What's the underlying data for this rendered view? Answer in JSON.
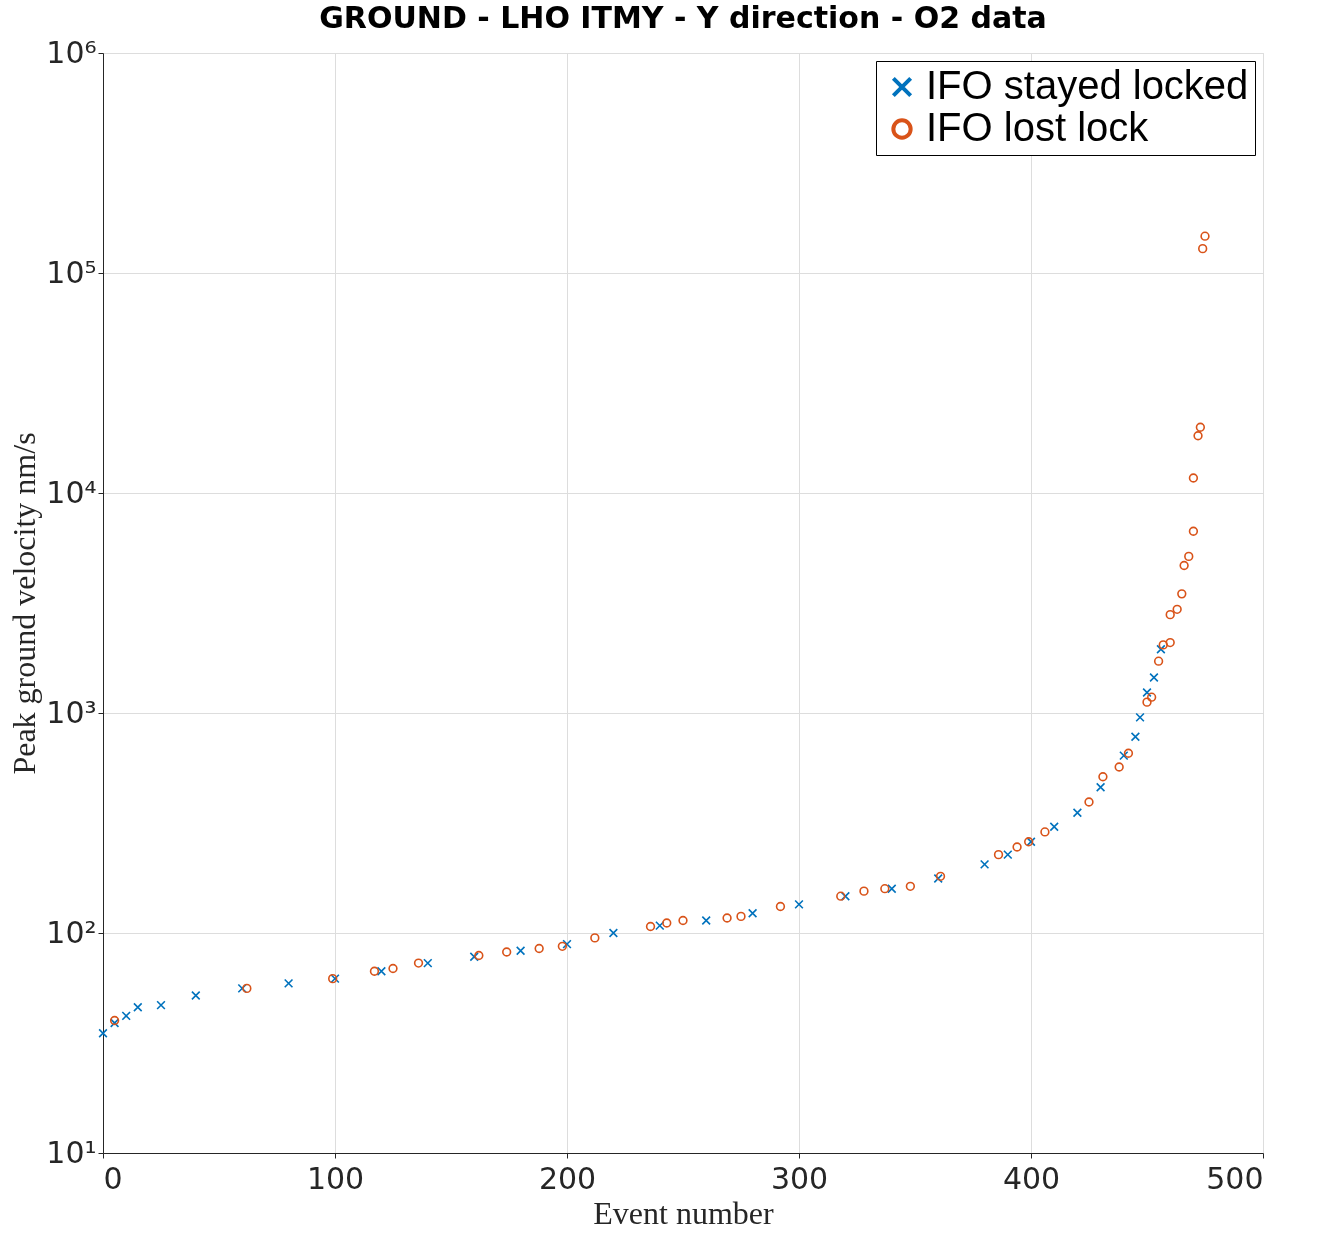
{
  "chart_data": {
    "type": "scatter",
    "title": "GROUND - LHO ITMY - Y direction - O2 data",
    "xlabel": "Event number",
    "ylabel": "Peak ground velocity nm/s",
    "xlim": [
      0,
      500
    ],
    "xticks": [
      0,
      100,
      200,
      300,
      400,
      500
    ],
    "ylim": [
      10,
      1000000
    ],
    "yticks": [
      {
        "value": 10,
        "label": "10¹"
      },
      {
        "value": 100,
        "label": "10²"
      },
      {
        "value": 1000,
        "label": "10³"
      },
      {
        "value": 10000,
        "label": "10⁴"
      },
      {
        "value": 100000,
        "label": "10⁵"
      },
      {
        "value": 1000000,
        "label": "10⁶"
      }
    ],
    "log": "y",
    "grid": true,
    "legend": "top right",
    "series": [
      {
        "name": "IFO stayed locked",
        "color": "#0072bd",
        "marker": "cross",
        "x": [
          0,
          5,
          10,
          15,
          25,
          40,
          60,
          80,
          100,
          120,
          140,
          160,
          180,
          200,
          220,
          240,
          260,
          280,
          300,
          320,
          340,
          360,
          380,
          390,
          400,
          410,
          420,
          430,
          440,
          445,
          447,
          450,
          453,
          456
        ],
        "values": [
          35,
          39,
          42,
          46,
          47,
          52,
          56,
          59,
          62,
          67,
          73,
          78,
          83,
          89,
          100,
          108,
          114,
          123,
          135,
          147,
          159,
          177,
          205,
          227,
          260,
          304,
          352,
          460,
          640,
          780,
          955,
          1240,
          1450,
          1950
        ]
      },
      {
        "name": "IFO lost lock",
        "color": "#d95319",
        "marker": "circle",
        "x": [
          5,
          62,
          99,
          117,
          125,
          136,
          162,
          174,
          188,
          198,
          212,
          236,
          243,
          250,
          269,
          275,
          292,
          318,
          328,
          337,
          348,
          361,
          386,
          394,
          399,
          406,
          425,
          431,
          438,
          442,
          450,
          452,
          455,
          457,
          460,
          460,
          463,
          465,
          466,
          468,
          470,
          470,
          472,
          473,
          474,
          475
        ],
        "values": [
          40,
          56,
          62,
          67,
          69,
          73,
          79,
          82,
          85,
          87,
          95,
          107,
          111,
          114,
          117,
          119,
          132,
          147,
          155,
          159,
          163,
          181,
          227,
          246,
          260,
          288,
          394,
          513,
          568,
          656,
          1120,
          1180,
          1720,
          2040,
          2090,
          2800,
          2960,
          3480,
          4680,
          5150,
          6700,
          11700,
          18200,
          19900,
          129000,
          147000
        ]
      }
    ]
  }
}
